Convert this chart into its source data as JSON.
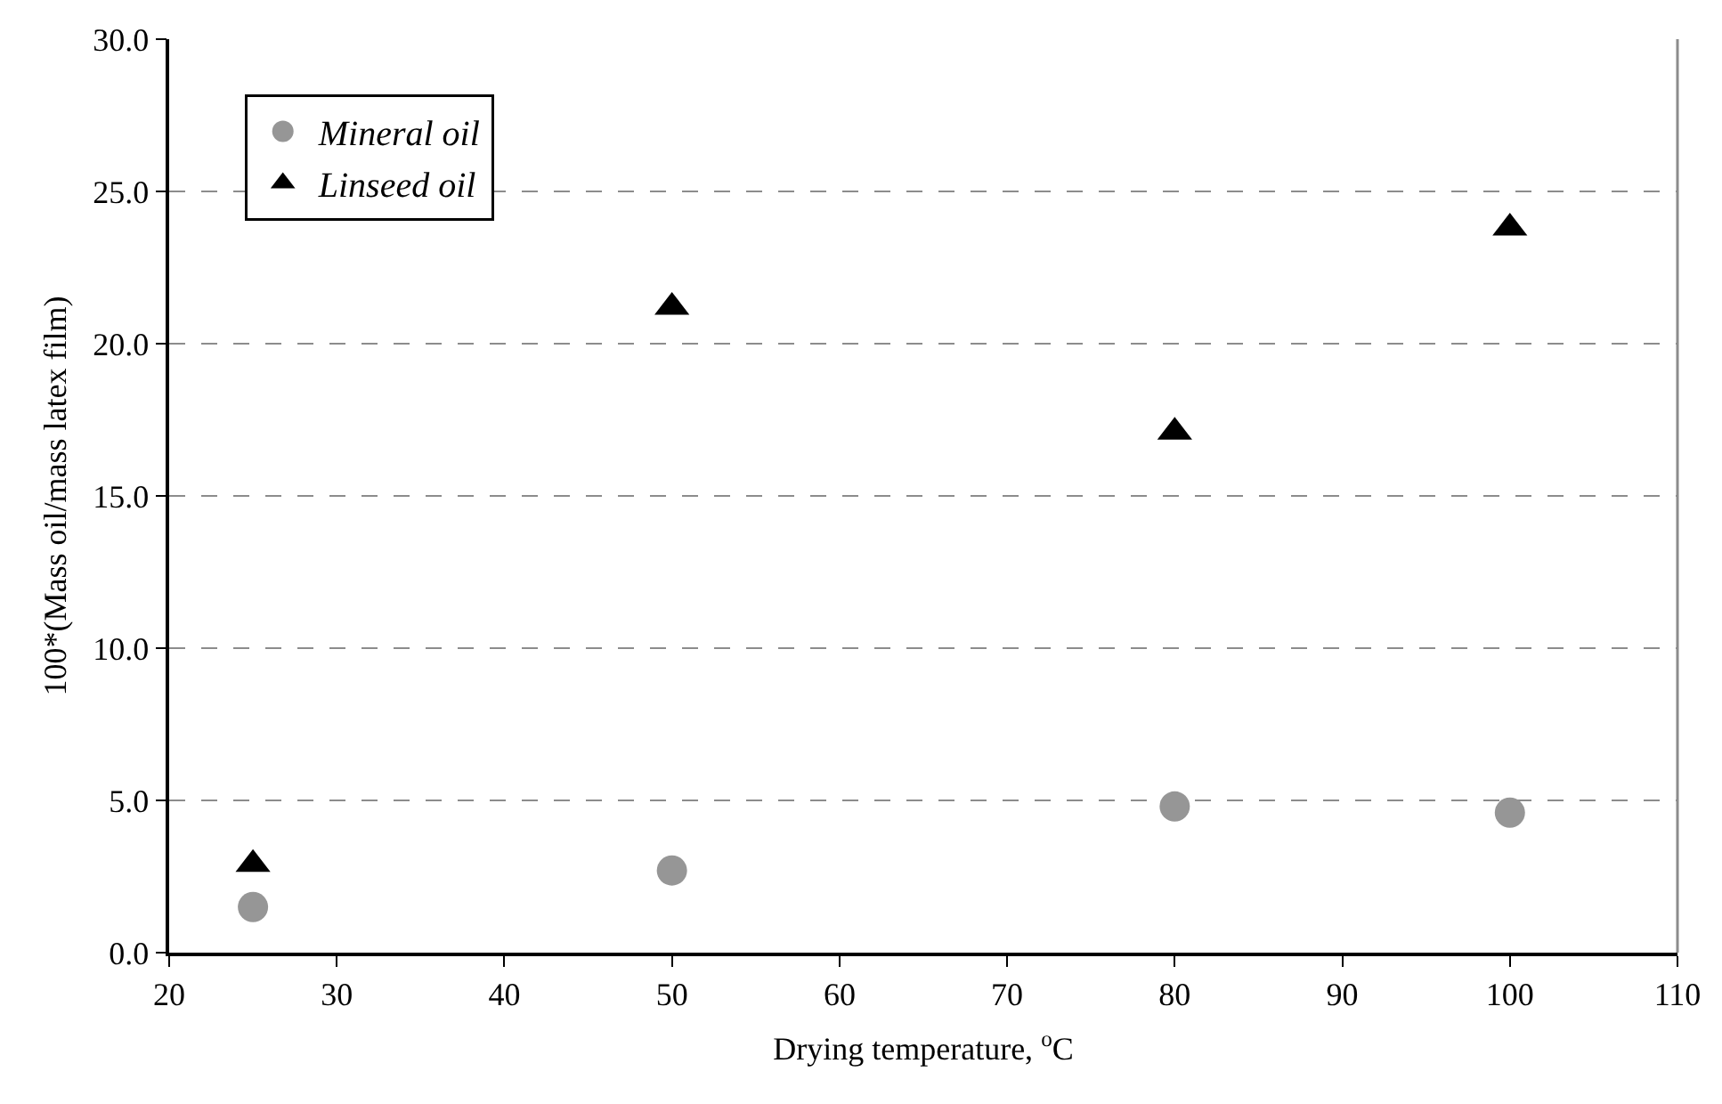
{
  "chart_data": {
    "type": "scatter",
    "xlabel": "Drying temperature, $^{o}$C",
    "ylabel": "100*(Mass oil/mass latex film)",
    "x": [
      25,
      50,
      80,
      100
    ],
    "series": [
      {
        "name": "Mineral oil",
        "color": "#969696",
        "marker": "circle",
        "values": [
          1.5,
          2.7,
          4.8,
          4.6
        ]
      },
      {
        "name": "Linseed oil",
        "color": "#000000",
        "marker": "triangle",
        "values": [
          2.9,
          21.2,
          17.1,
          23.8
        ]
      }
    ],
    "xlim": [
      20,
      110
    ],
    "xticks": [
      20,
      30,
      40,
      50,
      60,
      70,
      80,
      90,
      100,
      110
    ],
    "ylim": [
      0,
      30
    ],
    "yticks": [
      {
        "value": 0,
        "label": "0.0"
      },
      {
        "value": 5,
        "label": "5.0"
      },
      {
        "value": 10,
        "label": "10.0"
      },
      {
        "value": 15,
        "label": "15.0"
      },
      {
        "value": 20,
        "label": "20.0"
      },
      {
        "value": 25,
        "label": "25.0"
      },
      {
        "value": 30,
        "label": "30.0"
      }
    ],
    "grid": "y",
    "legend": "top left"
  }
}
